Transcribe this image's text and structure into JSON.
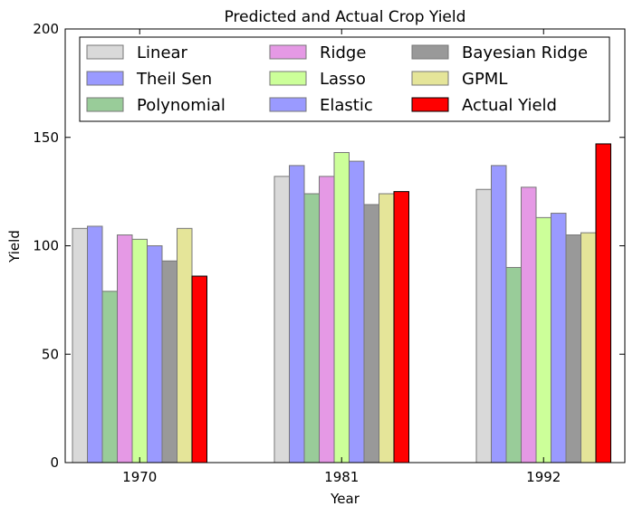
{
  "chart_data": {
    "type": "bar",
    "title": "Predicted and Actual Crop Yield",
    "xlabel": "Year",
    "ylabel": "Yield",
    "ylim": [
      0,
      200
    ],
    "yticks": [
      "0",
      "50",
      "100",
      "150",
      "200"
    ],
    "categories": [
      "1970",
      "1981",
      "1992"
    ],
    "grid": false,
    "legend_position": "top",
    "series": [
      {
        "name": "Linear",
        "color": "#d9d9d9",
        "values": [
          108,
          132,
          126
        ]
      },
      {
        "name": "Theil Sen",
        "color": "#9a9aff",
        "values": [
          109,
          137,
          137
        ]
      },
      {
        "name": "Polynomial",
        "color": "#99cc99",
        "values": [
          79,
          124,
          90
        ]
      },
      {
        "name": "Ridge",
        "color": "#e599e5",
        "values": [
          105,
          132,
          127
        ]
      },
      {
        "name": "Lasso",
        "color": "#ccff99",
        "values": [
          103,
          143,
          113
        ]
      },
      {
        "name": "Elastic",
        "color": "#9a9aff",
        "values": [
          100,
          139,
          115
        ]
      },
      {
        "name": "Bayesian Ridge",
        "color": "#999999",
        "values": [
          93,
          119,
          105
        ]
      },
      {
        "name": "GPML",
        "color": "#e5e599",
        "values": [
          108,
          124,
          106
        ]
      },
      {
        "name": "Actual Yield",
        "color": "#ff0000",
        "values": [
          86,
          125,
          147
        ]
      }
    ]
  }
}
